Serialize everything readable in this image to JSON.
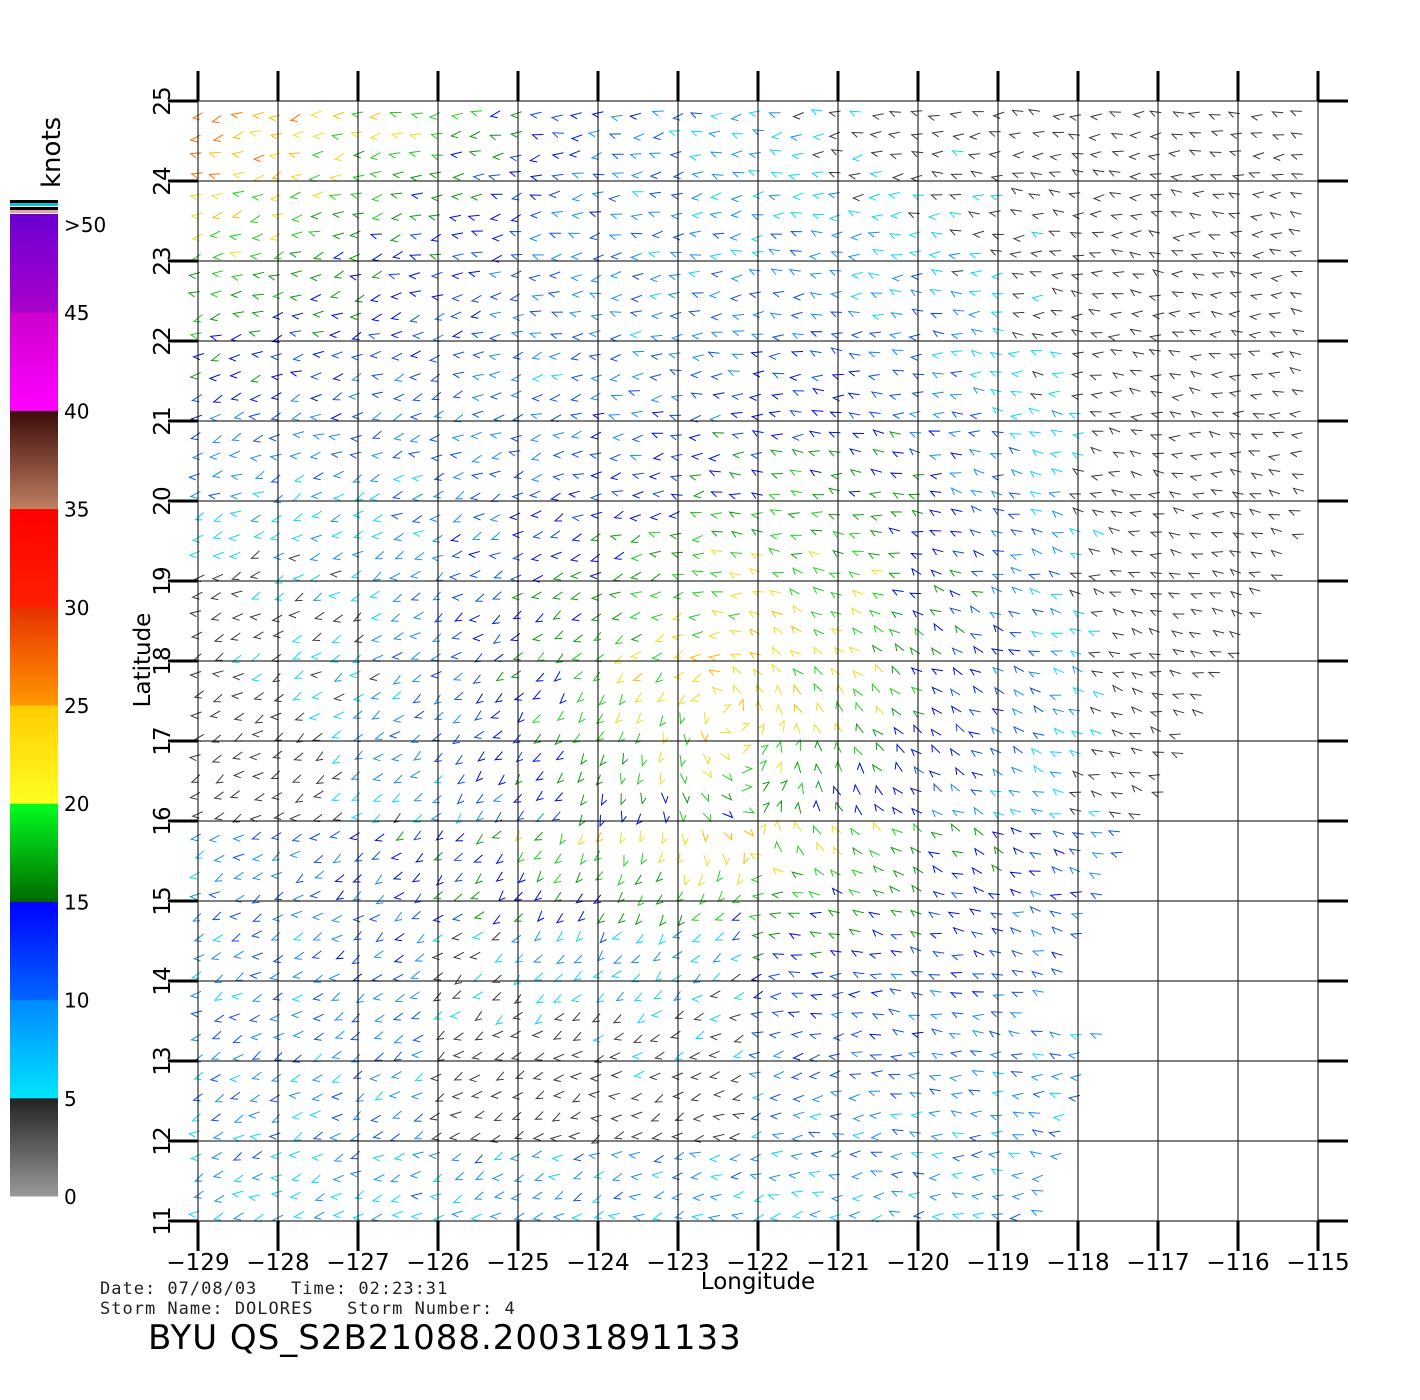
{
  "chart_data": {
    "type": "wind_barbs",
    "xlabel": "Longitude",
    "ylabel": "Latitude",
    "xlim": [
      -129,
      -115
    ],
    "ylim": [
      11,
      25
    ],
    "x_ticks": [
      "-129",
      "-128",
      "-127",
      "-126",
      "-125",
      "-124",
      "-123",
      "-122",
      "-121",
      "-120",
      "-119",
      "-118",
      "-117",
      "-116",
      "-115"
    ],
    "y_ticks": [
      "11",
      "12",
      "13",
      "14",
      "15",
      "16",
      "17",
      "18",
      "19",
      "20",
      "21",
      "22",
      "23",
      "24",
      "25"
    ],
    "grid": true,
    "colorbar": {
      "title": "knots",
      "labels": [
        "0",
        "5",
        "10",
        "15",
        "20",
        "25",
        "30",
        "35",
        "40",
        "45",
        ">50"
      ],
      "bands": [
        {
          "from": 0,
          "to": 5,
          "colors": [
            "#999999",
            "#222222"
          ]
        },
        {
          "from": 5,
          "to": 10,
          "colors": [
            "#00e5ff",
            "#0088ff"
          ]
        },
        {
          "from": 10,
          "to": 15,
          "colors": [
            "#0066ff",
            "#0000ff"
          ]
        },
        {
          "from": 15,
          "to": 20,
          "colors": [
            "#006a00",
            "#00ff20"
          ]
        },
        {
          "from": 20,
          "to": 25,
          "colors": [
            "#ffff20",
            "#ffcc00"
          ]
        },
        {
          "from": 25,
          "to": 30,
          "colors": [
            "#ff9800",
            "#e83000"
          ]
        },
        {
          "from": 30,
          "to": 35,
          "colors": [
            "#ff2000",
            "#ff0000"
          ]
        },
        {
          "from": 35,
          "to": 40,
          "colors": [
            "#c08060",
            "#3a0a0a"
          ]
        },
        {
          "from": 40,
          "to": 45,
          "colors": [
            "#ff00ff",
            "#cc00cc"
          ]
        },
        {
          "from": 45,
          "to": 50,
          "colors": [
            "#aa00cc",
            "#6a00d0"
          ]
        }
      ]
    },
    "storm_center": {
      "lon": -122.5,
      "lat": 17.6
    }
  },
  "info": {
    "date_line": "Date: 07/08/03   Time: 02:23:31",
    "storm_line": "Storm Name: DOLORES   Storm Number: 4",
    "source": "BYU QS_S2B21088.20031891133"
  }
}
